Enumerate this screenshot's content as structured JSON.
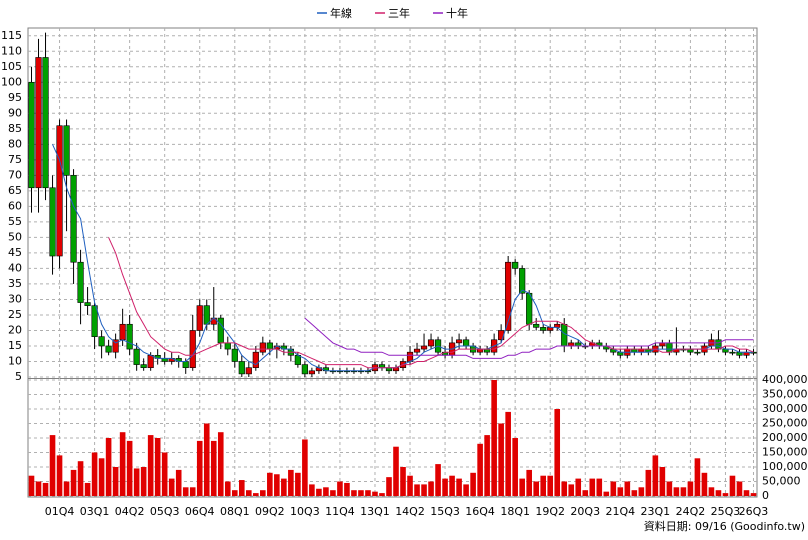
{
  "chart_data": {
    "type": "candlestick",
    "footer": "資料日期: 09/16 (Goodinfo.tw)",
    "up_color": "#e00000",
    "down_color": "#00a000",
    "grid": true,
    "categories": [
      null,
      null,
      null,
      null,
      "01Q4",
      null,
      null,
      null,
      null,
      "03Q1",
      null,
      null,
      null,
      null,
      "04Q2",
      null,
      null,
      null,
      null,
      "05Q3",
      null,
      null,
      null,
      null,
      "06Q4",
      null,
      null,
      null,
      null,
      "08Q1",
      null,
      null,
      null,
      null,
      "09Q2",
      null,
      null,
      null,
      null,
      "10Q3",
      null,
      null,
      null,
      null,
      "11Q4",
      null,
      null,
      null,
      null,
      "13Q1",
      null,
      null,
      null,
      null,
      "14Q2",
      null,
      null,
      null,
      null,
      "15Q3",
      null,
      null,
      null,
      null,
      "16Q4",
      null,
      null,
      null,
      null,
      "18Q1",
      null,
      null,
      null,
      null,
      "19Q2",
      null,
      null,
      null,
      null,
      "20Q3",
      null,
      null,
      null,
      null,
      "21Q4",
      null,
      null,
      null,
      null,
      "23Q1",
      null,
      null,
      null,
      null,
      "24Q2",
      null,
      null,
      null,
      null,
      "25Q3",
      null,
      null,
      null,
      "26Q3"
    ],
    "ylim": [
      5,
      117.5
    ],
    "yticks": [
      5,
      10,
      15,
      20,
      25,
      30,
      35,
      40,
      45,
      50,
      55,
      60,
      65,
      70,
      75,
      80,
      85,
      90,
      95,
      100,
      105,
      110,
      115
    ],
    "open": [
      100,
      66,
      108,
      66,
      44,
      86,
      70,
      42,
      29,
      28,
      18,
      15,
      13,
      17,
      22,
      14,
      9,
      8,
      12,
      11,
      10,
      11,
      10,
      8,
      20,
      28,
      22,
      24,
      16,
      14,
      10,
      6,
      8,
      13,
      16,
      14,
      15,
      14,
      12,
      9,
      6,
      7,
      8,
      7,
      7,
      7,
      7,
      7,
      7,
      7,
      9,
      8,
      7,
      8,
      10,
      13,
      14,
      15,
      17,
      13,
      12,
      16,
      17,
      15,
      13,
      14,
      13,
      17,
      20,
      42,
      40,
      32,
      22,
      21,
      20,
      21,
      22,
      15,
      16,
      15,
      15,
      16,
      15,
      14,
      13,
      12,
      14,
      13,
      14,
      13,
      15,
      16,
      13,
      14,
      14,
      13,
      13,
      15,
      17,
      14,
      13,
      13,
      12,
      13
    ],
    "high": [
      105,
      114,
      116,
      70,
      88,
      88,
      72,
      46,
      34,
      29,
      20,
      17,
      19,
      27,
      25,
      16,
      11,
      13,
      14,
      13,
      13,
      12,
      11,
      25,
      30,
      30,
      34,
      25,
      18,
      16,
      12,
      10,
      15,
      18,
      17,
      16,
      16,
      15,
      13,
      10,
      8,
      9,
      9,
      8,
      8,
      8,
      8,
      8,
      8,
      10,
      10,
      9,
      9,
      11,
      15,
      16,
      19,
      19,
      18,
      15,
      18,
      19,
      18,
      16,
      15,
      15,
      19,
      22,
      44,
      43,
      41,
      33,
      24,
      22,
      22,
      23,
      24,
      17,
      17,
      16,
      17,
      17,
      16,
      15,
      14,
      15,
      15,
      15,
      15,
      16,
      17,
      17,
      21,
      15,
      15,
      14,
      16,
      19,
      20,
      15,
      14,
      14,
      14,
      14
    ],
    "low": [
      58,
      58,
      62,
      38,
      40,
      52,
      35,
      22,
      25,
      14,
      11,
      12,
      11,
      15,
      12,
      7,
      7,
      7,
      9,
      9,
      9,
      8,
      6,
      7,
      18,
      20,
      20,
      14,
      12,
      8,
      5,
      5,
      7,
      12,
      12,
      11,
      12,
      10,
      8,
      5,
      5,
      6,
      6,
      6,
      6,
      6,
      6,
      6,
      6,
      6,
      7,
      6,
      6,
      7,
      9,
      12,
      13,
      14,
      12,
      11,
      11,
      14,
      14,
      12,
      12,
      12,
      12,
      16,
      19,
      38,
      30,
      20,
      20,
      19,
      19,
      20,
      13,
      14,
      14,
      14,
      14,
      14,
      13,
      12,
      11,
      11,
      12,
      12,
      12,
      12,
      14,
      12,
      12,
      13,
      12,
      12,
      12,
      14,
      13,
      12,
      12,
      11,
      11,
      12
    ],
    "close": [
      66,
      108,
      66,
      44,
      86,
      70,
      42,
      29,
      28,
      18,
      15,
      13,
      17,
      22,
      14,
      9,
      8,
      12,
      11,
      10,
      11,
      10,
      8,
      20,
      28,
      22,
      24,
      16,
      14,
      10,
      6,
      8,
      13,
      16,
      14,
      15,
      14,
      12,
      9,
      6,
      7,
      8,
      7,
      7,
      7,
      7,
      7,
      7,
      7,
      9,
      8,
      7,
      8,
      10,
      13,
      14,
      15,
      17,
      13,
      12,
      16,
      17,
      15,
      13,
      14,
      13,
      17,
      20,
      42,
      40,
      32,
      22,
      21,
      20,
      21,
      22,
      15,
      16,
      15,
      15,
      16,
      15,
      14,
      13,
      12,
      14,
      13,
      14,
      13,
      15,
      16,
      13,
      14,
      14,
      13,
      13,
      15,
      17,
      14,
      13,
      13,
      12,
      13,
      13
    ],
    "series": [
      {
        "name": "年線",
        "color": "#1f5fbf",
        "values": [
          null,
          null,
          null,
          80,
          75,
          66,
          60,
          56,
          42,
          29,
          22,
          18,
          16,
          17,
          16,
          15,
          13,
          12,
          11,
          11,
          11,
          10,
          10,
          12,
          16,
          22,
          24,
          22,
          19,
          16,
          12,
          10,
          9,
          11,
          13,
          15,
          14,
          14,
          12,
          11,
          9,
          8,
          7,
          7,
          7,
          7,
          7,
          7,
          7,
          8,
          8,
          8,
          8,
          9,
          10,
          11,
          13,
          14,
          15,
          14,
          14,
          15,
          15,
          15,
          14,
          14,
          15,
          16,
          23,
          30,
          33,
          32,
          28,
          22,
          21,
          21,
          19,
          18,
          17,
          15,
          15,
          15,
          15,
          14,
          13,
          13,
          13,
          13,
          13,
          14,
          14,
          14,
          14,
          14,
          14,
          14,
          14,
          15,
          15,
          14,
          14,
          13,
          13,
          13
        ]
      },
      {
        "name": "三年",
        "color": "#d0206a",
        "values": [
          null,
          null,
          null,
          null,
          null,
          null,
          null,
          null,
          null,
          null,
          null,
          50,
          45,
          38,
          32,
          26,
          22,
          18,
          16,
          14,
          13,
          13,
          12,
          12,
          13,
          14,
          15,
          16,
          16,
          16,
          15,
          14,
          14,
          14,
          14,
          14,
          13,
          13,
          13,
          12,
          11,
          10,
          9,
          9,
          9,
          9,
          9,
          9,
          8,
          8,
          8,
          8,
          8,
          9,
          9,
          10,
          10,
          11,
          12,
          13,
          13,
          14,
          14,
          14,
          14,
          14,
          14,
          15,
          17,
          19,
          21,
          22,
          23,
          23,
          23,
          23,
          22,
          21,
          19,
          17,
          16,
          15,
          15,
          14,
          14,
          14,
          14,
          14,
          14,
          14,
          13,
          13,
          14,
          14,
          14,
          14,
          14,
          14,
          14,
          15,
          15,
          14,
          14,
          13
        ]
      },
      {
        "name": "十年",
        "color": "#9020c0",
        "values": [
          null,
          null,
          null,
          null,
          null,
          null,
          null,
          null,
          null,
          null,
          null,
          null,
          null,
          null,
          null,
          null,
          null,
          null,
          null,
          null,
          null,
          null,
          null,
          null,
          null,
          null,
          null,
          null,
          null,
          null,
          null,
          null,
          null,
          null,
          null,
          null,
          null,
          null,
          null,
          24,
          22,
          20,
          18,
          16,
          15,
          14,
          14,
          13,
          13,
          13,
          13,
          12,
          12,
          12,
          12,
          12,
          12,
          12,
          12,
          12,
          12,
          12,
          12,
          11,
          11,
          11,
          11,
          11,
          12,
          12,
          13,
          13,
          14,
          14,
          14,
          15,
          15,
          15,
          15,
          15,
          15,
          15,
          15,
          15,
          15,
          15,
          15,
          15,
          15,
          16,
          16,
          16,
          16,
          16,
          16,
          16,
          16,
          16,
          16,
          17,
          17,
          17,
          17,
          17
        ]
      }
    ],
    "volume": {
      "color": "#e00000",
      "ylim": [
        0,
        400000
      ],
      "yticks": [
        0,
        {
          "value": 50000,
          "label": "50,000"
        },
        {
          "value": 100000,
          "label": "100,000"
        },
        {
          "value": 150000,
          "label": "150,000"
        },
        {
          "value": 200000,
          "label": "200,000"
        },
        {
          "value": 250000,
          "label": "250,000"
        },
        {
          "value": 300000,
          "label": "300,000"
        },
        {
          "value": 350000,
          "label": "350,000"
        },
        {
          "value": 400000,
          "label": "400,000"
        }
      ],
      "values": [
        70000,
        50000,
        45000,
        210000,
        140000,
        50000,
        90000,
        120000,
        45000,
        150000,
        130000,
        200000,
        100000,
        220000,
        190000,
        95000,
        100000,
        210000,
        200000,
        150000,
        60000,
        90000,
        30000,
        30000,
        190000,
        250000,
        190000,
        220000,
        50000,
        20000,
        55000,
        20000,
        10000,
        20000,
        80000,
        75000,
        60000,
        90000,
        80000,
        195000,
        40000,
        25000,
        30000,
        20000,
        50000,
        45000,
        20000,
        20000,
        20000,
        15000,
        10000,
        65000,
        170000,
        100000,
        70000,
        40000,
        40000,
        50000,
        110000,
        60000,
        70000,
        60000,
        40000,
        80000,
        180000,
        210000,
        400000,
        250000,
        290000,
        200000,
        60000,
        90000,
        50000,
        70000,
        70000,
        300000,
        50000,
        40000,
        60000,
        20000,
        60000,
        60000,
        15000,
        50000,
        30000,
        50000,
        20000,
        30000,
        90000,
        140000,
        100000,
        50000,
        30000,
        30000,
        50000,
        130000,
        80000,
        30000,
        20000,
        10000,
        70000,
        50000,
        20000,
        10000
      ]
    }
  }
}
